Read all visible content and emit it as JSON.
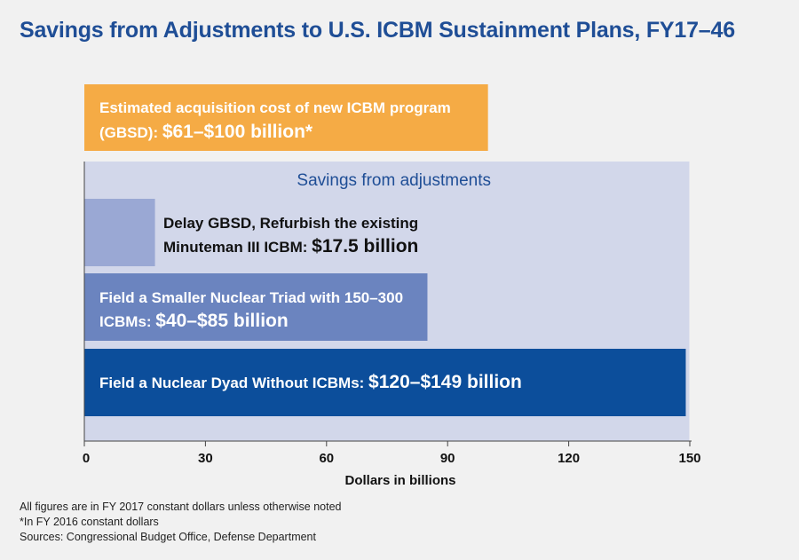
{
  "chart_data": {
    "type": "bar",
    "title": "Savings from Adjustments to U.S. ICBM Sustainment Plans, FY17–46",
    "xlabel": "Dollars in billions",
    "xlim": [
      0,
      150
    ],
    "xticks": [
      0,
      30,
      60,
      90,
      120,
      150
    ],
    "group_label": "Savings from adjustments",
    "bars": [
      {
        "name": "acquisition",
        "label_lines": [
          {
            "text": "Estimated acquisition cost of new ICBM program",
            "value": ""
          },
          {
            "text": "(GBSD): ",
            "value": "$61–$100 billion*"
          }
        ],
        "value": 100,
        "range": [
          61,
          100
        ],
        "color": "#f5ab45",
        "text_color": "#ffffff"
      },
      {
        "name": "delay-gbsd",
        "label_lines": [
          {
            "text": "Delay GBSD, Refurbish the existing",
            "value": ""
          },
          {
            "text": "Minuteman III ICBM: ",
            "value": "$17.5 billion"
          }
        ],
        "value": 17.5,
        "color": "#9aa8d4",
        "text_color": "#111111"
      },
      {
        "name": "smaller-triad",
        "label_lines": [
          {
            "text": "Field a Smaller Nuclear Triad with 150–300",
            "value": ""
          },
          {
            "text": "ICBMs: ",
            "value": "$40–$85 billion"
          }
        ],
        "value": 85,
        "range": [
          40,
          85
        ],
        "color": "#6b84bf",
        "text_color": "#ffffff"
      },
      {
        "name": "dyad",
        "label_lines": [
          {
            "text": "Field a Nuclear Dyad Without ICBMs: ",
            "value": "$120–$149 billion"
          }
        ],
        "value": 149,
        "range": [
          120,
          149
        ],
        "color": "#0c4e9b",
        "text_color": "#ffffff"
      }
    ],
    "group_color": "#d2d7ea",
    "group_text_color": "#1f4e96"
  },
  "footnotes": {
    "line1": "All figures are in FY 2017 constant dollars unless otherwise noted",
    "line2": "*In FY 2016 constant dollars",
    "line3": "Sources: Congressional Budget Office, Defense Department"
  }
}
